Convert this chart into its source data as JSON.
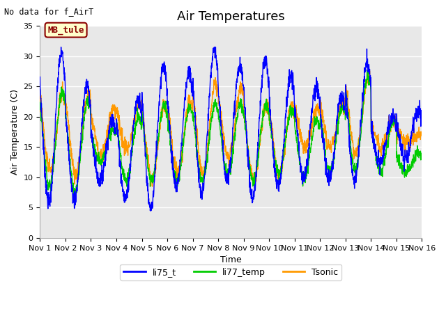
{
  "title": "Air Temperatures",
  "xlabel": "Time",
  "ylabel": "Air Temperature (C)",
  "top_left_text": "No data for f_AirT",
  "annotation_box_text": "MB_tule",
  "annotation_box_color": "#ffffcc",
  "annotation_box_border": "#8b0000",
  "ylim": [
    0,
    35
  ],
  "yticks": [
    0,
    5,
    10,
    15,
    20,
    25,
    30,
    35
  ],
  "xtick_labels": [
    "Nov 1",
    "Nov 2",
    "Nov 3",
    "Nov 4",
    "Nov 5",
    "Nov 6",
    "Nov 7",
    "Nov 8",
    "Nov 9",
    "Nov 10",
    "Nov 11",
    "Nov 12",
    "Nov 13",
    "Nov 14",
    "Nov 15",
    "Nov 16"
  ],
  "line_colors": {
    "li75_t": "#0000ff",
    "li77_temp": "#00cc00",
    "Tsonic": "#ff9900"
  },
  "fig_bg_color": "#ffffff",
  "plot_bg_color": "#e8e8e8",
  "grid_color": "#d0d0d0",
  "title_fontsize": 13,
  "axis_label_fontsize": 9,
  "tick_fontsize": 8,
  "legend_fontsize": 9,
  "n_days": 15,
  "pts_per_day": 144
}
